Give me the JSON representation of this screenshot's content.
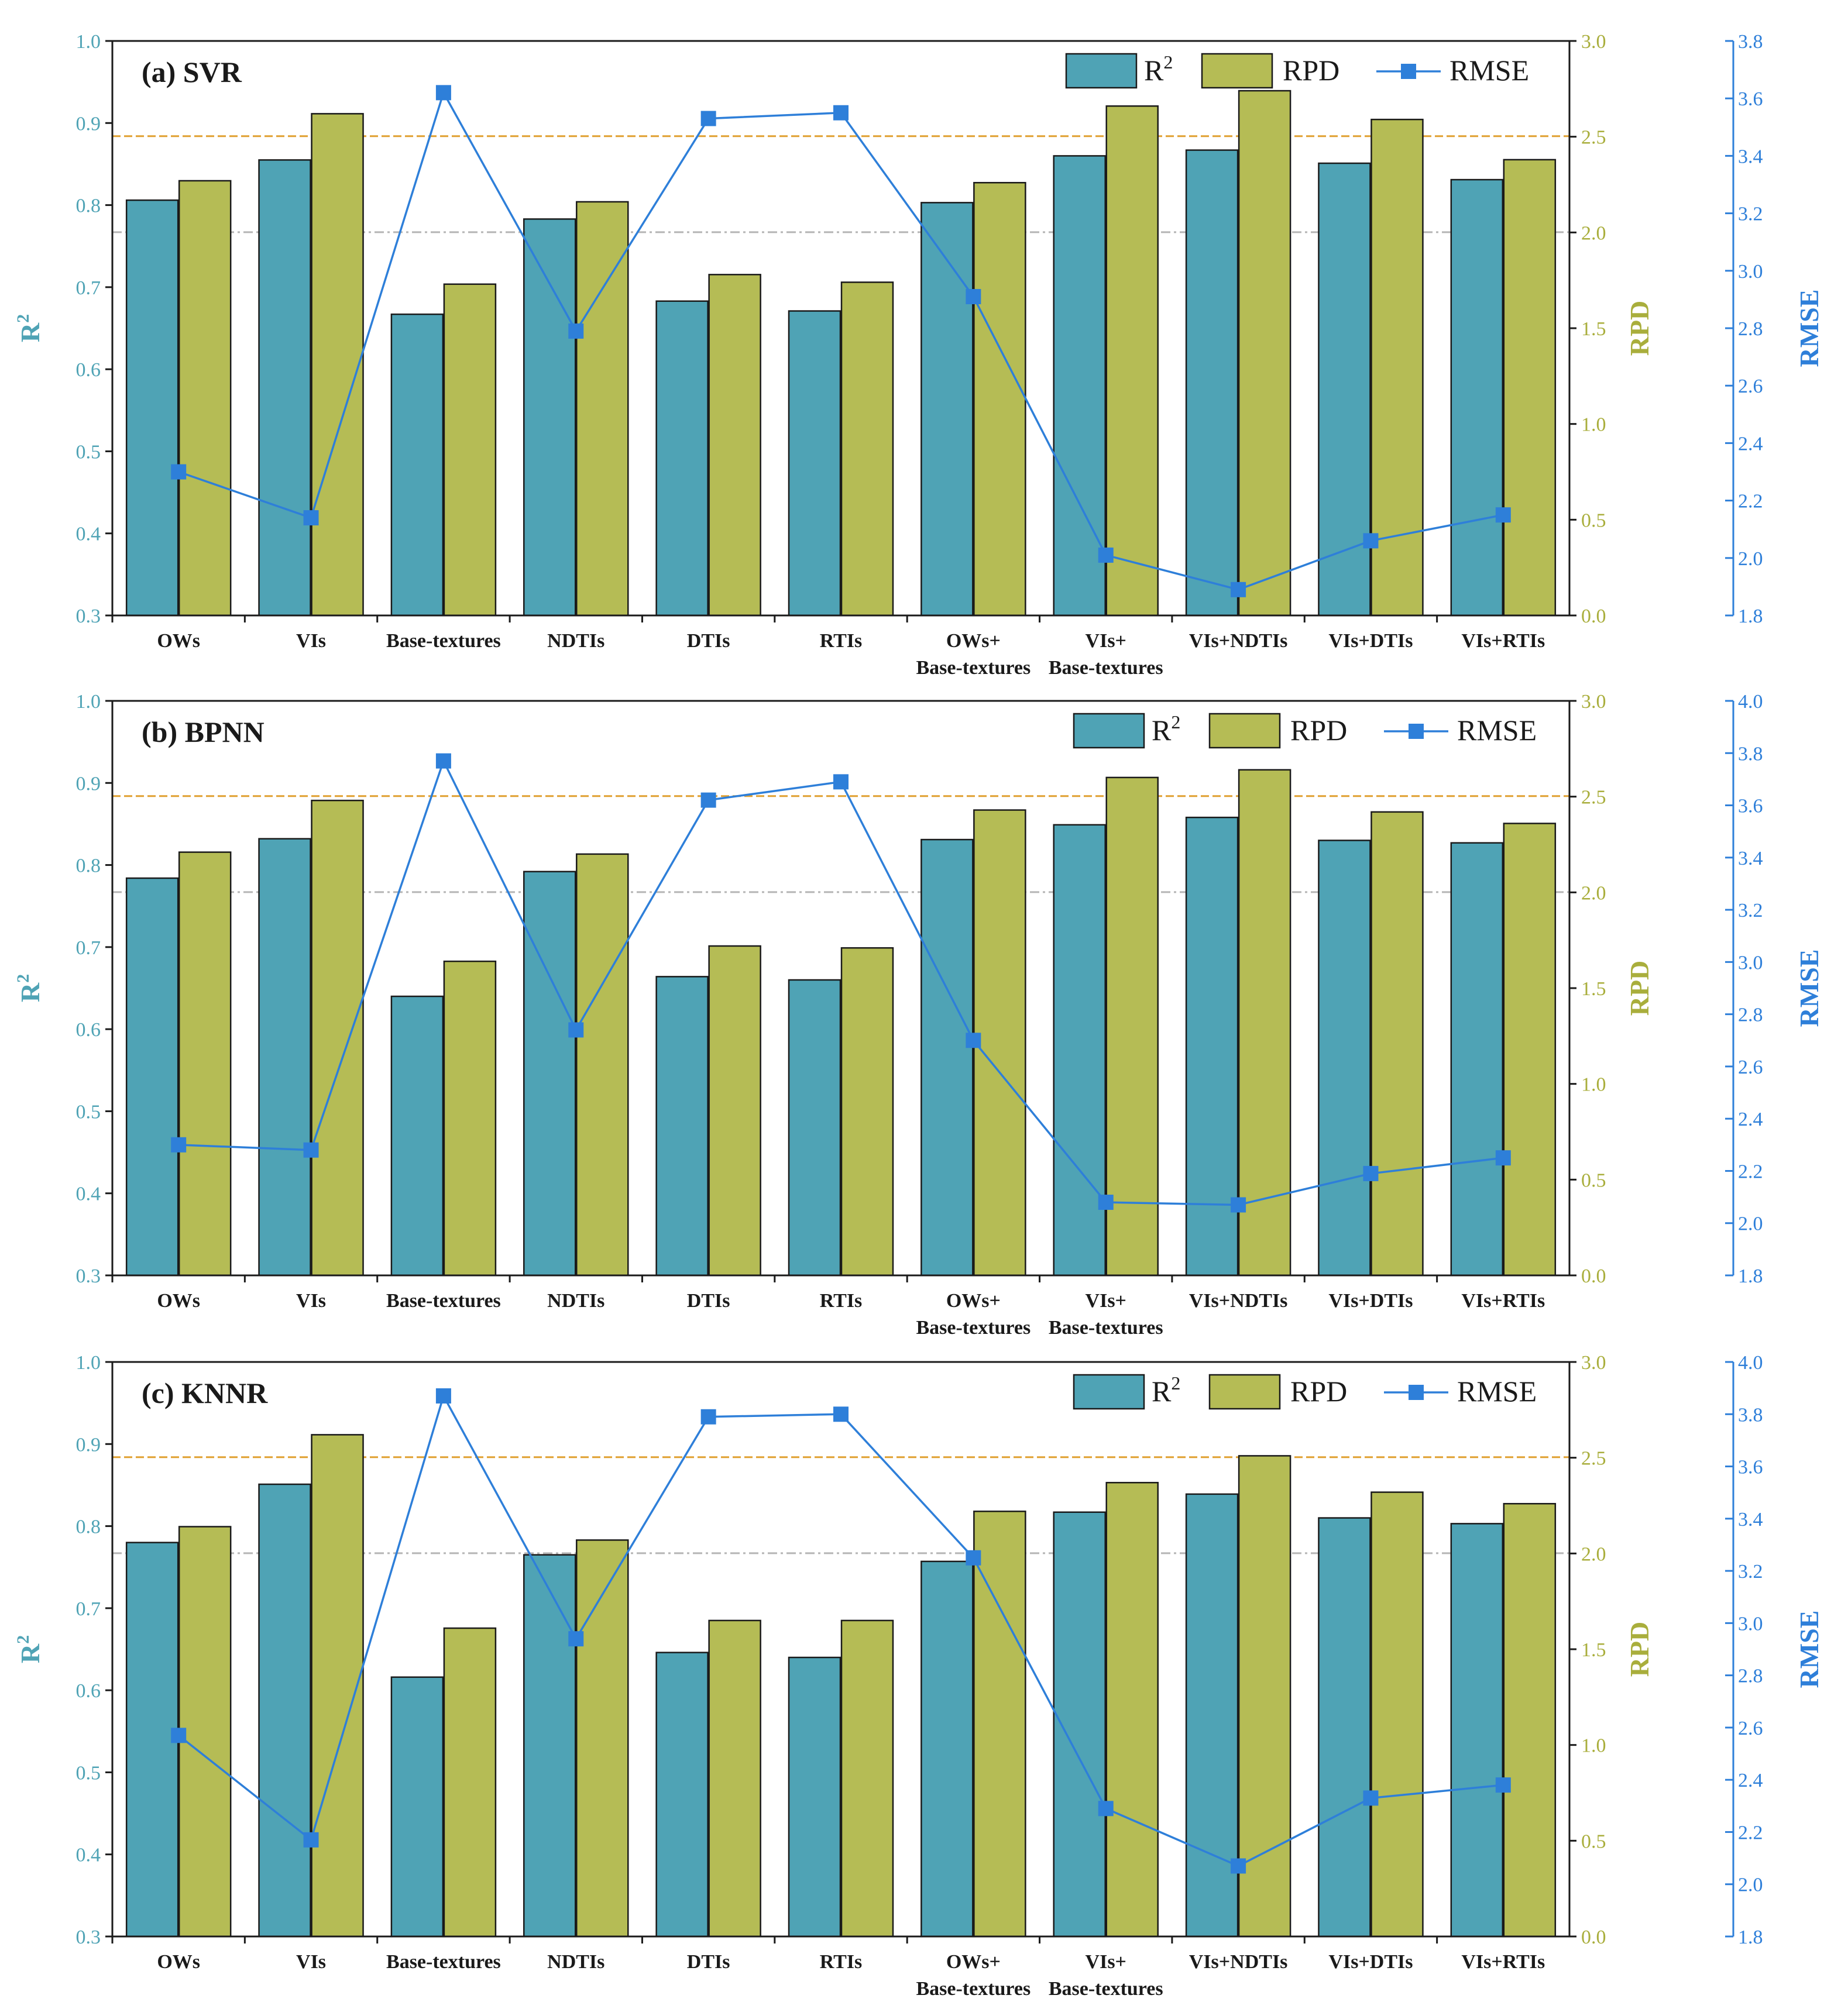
{
  "colors": {
    "r2": "#4fa3b5",
    "rpd": "#b5bc55",
    "rmse": "#2e7fd9",
    "r2_axis": "#4fa3b5",
    "rpd_axis": "#a9ae3c",
    "rmse_axis": "#2e7fd9",
    "orange_ref": "#e0a030",
    "gray_ref": "#b5b5b5"
  },
  "chart_data": [
    {
      "type": "bar",
      "title": "(a) SVR",
      "categories": [
        "OWs",
        "VIs",
        "Base-textures",
        "NDTIs",
        "DTIs",
        "RTIs",
        "OWs+\nBase-textures",
        "VIs+\nBase-textures",
        "VIs+NDTIs",
        "VIs+DTIs",
        "VIs+RTIs"
      ],
      "series": [
        {
          "name": "R2",
          "legend_main": "R",
          "legend_sup": "2",
          "axis": "left",
          "values": [
            0.806,
            0.855,
            0.667,
            0.783,
            0.683,
            0.671,
            0.803,
            0.86,
            0.867,
            0.851,
            0.831
          ]
        },
        {
          "name": "RPD",
          "legend_main": "RPD",
          "legend_sup": "",
          "axis": "right1",
          "values": [
            2.27,
            2.62,
            1.73,
            2.16,
            1.78,
            1.74,
            2.26,
            2.66,
            2.74,
            2.59,
            2.38
          ]
        },
        {
          "name": "RMSE",
          "legend_main": "RMSE",
          "legend_sup": "",
          "axis": "right2",
          "values": [
            2.3,
            2.14,
            3.62,
            2.79,
            3.53,
            3.55,
            2.91,
            2.01,
            1.89,
            2.06,
            2.15
          ]
        }
      ],
      "ylabel_main": "R",
      "ylabel_sup": "2",
      "y2label": "RPD",
      "y3label": "RMSE",
      "ylim": [
        0.3,
        1.0
      ],
      "y2lim": [
        0.0,
        3.0
      ],
      "y3lim": [
        1.8,
        3.8
      ],
      "yticks": [
        "0.3",
        "0.4",
        "0.5",
        "0.6",
        "0.7",
        "0.8",
        "0.9",
        "1.0"
      ],
      "y2ticks": [
        "0.0",
        "0.5",
        "1.0",
        "1.5",
        "2.0",
        "2.5",
        "3.0"
      ],
      "y3ticks": [
        "1.8",
        "2.0",
        "2.2",
        "2.4",
        "2.6",
        "2.8",
        "3.0",
        "3.2",
        "3.4",
        "3.6",
        "3.8"
      ],
      "reference_lines": [
        {
          "axis": "left",
          "value": 0.884,
          "color": "orange"
        },
        {
          "axis": "left",
          "value": 0.767,
          "color": "gray"
        }
      ],
      "legend_position": "top-right"
    },
    {
      "type": "bar",
      "title": "(b) BPNN",
      "categories": [
        "OWs",
        "VIs",
        "Base-textures",
        "NDTIs",
        "DTIs",
        "RTIs",
        "OWs+\nBase-textures",
        "VIs+\nBase-textures",
        "VIs+NDTIs",
        "VIs+DTIs",
        "VIs+RTIs"
      ],
      "series": [
        {
          "name": "R2",
          "legend_main": "R",
          "legend_sup": "2",
          "axis": "left",
          "values": [
            0.784,
            0.832,
            0.64,
            0.792,
            0.664,
            0.66,
            0.831,
            0.849,
            0.858,
            0.83,
            0.827
          ]
        },
        {
          "name": "RPD",
          "legend_main": "RPD",
          "legend_sup": "",
          "axis": "right1",
          "values": [
            2.21,
            2.48,
            1.64,
            2.2,
            1.72,
            1.71,
            2.43,
            2.6,
            2.64,
            2.42,
            2.36
          ]
        },
        {
          "name": "RMSE",
          "legend_main": "RMSE",
          "legend_sup": "",
          "axis": "right2",
          "values": [
            2.3,
            2.28,
            3.77,
            2.74,
            3.62,
            3.69,
            2.7,
            2.08,
            2.07,
            2.19,
            2.25
          ]
        }
      ],
      "ylabel_main": "R",
      "ylabel_sup": "2",
      "y2label": "RPD",
      "y3label": "RMSE",
      "ylim": [
        0.3,
        1.0
      ],
      "y2lim": [
        0.0,
        3.0
      ],
      "y3lim": [
        1.8,
        4.0
      ],
      "yticks": [
        "0.3",
        "0.4",
        "0.5",
        "0.6",
        "0.7",
        "0.8",
        "0.9",
        "1.0"
      ],
      "y2ticks": [
        "0.0",
        "0.5",
        "1.0",
        "1.5",
        "2.0",
        "2.5",
        "3.0"
      ],
      "y3ticks": [
        "1.8",
        "2.0",
        "2.2",
        "2.4",
        "2.6",
        "2.8",
        "3.0",
        "3.2",
        "3.4",
        "3.6",
        "3.8",
        "4.0"
      ],
      "reference_lines": [
        {
          "axis": "left",
          "value": 0.884,
          "color": "orange"
        },
        {
          "axis": "left",
          "value": 0.767,
          "color": "gray"
        }
      ],
      "legend_position": "top-right"
    },
    {
      "type": "bar",
      "title": "(c) KNNR",
      "categories": [
        "OWs",
        "VIs",
        "Base-textures",
        "NDTIs",
        "DTIs",
        "RTIs",
        "OWs+\nBase-textures",
        "VIs+\nBase-textures",
        "VIs+NDTIs",
        "VIs+DTIs",
        "VIs+RTIs"
      ],
      "series": [
        {
          "name": "R2",
          "legend_main": "R",
          "legend_sup": "2",
          "axis": "left",
          "values": [
            0.78,
            0.851,
            0.616,
            0.765,
            0.646,
            0.64,
            0.757,
            0.817,
            0.839,
            0.81,
            0.803
          ]
        },
        {
          "name": "RPD",
          "legend_main": "RPD",
          "legend_sup": "",
          "axis": "right1",
          "values": [
            2.14,
            2.62,
            1.61,
            2.07,
            1.65,
            1.65,
            2.22,
            2.37,
            2.51,
            2.32,
            2.26
          ]
        },
        {
          "name": "RMSE",
          "legend_main": "RMSE",
          "legend_sup": "",
          "axis": "right2",
          "values": [
            2.57,
            2.17,
            3.87,
            2.94,
            3.79,
            3.8,
            3.25,
            2.29,
            2.07,
            2.33,
            2.38
          ]
        }
      ],
      "ylabel_main": "R",
      "ylabel_sup": "2",
      "y2label": "RPD",
      "y3label": "RMSE",
      "ylim": [
        0.3,
        1.0
      ],
      "y2lim": [
        0.0,
        3.0
      ],
      "y3lim": [
        1.8,
        4.0
      ],
      "yticks": [
        "0.3",
        "0.4",
        "0.5",
        "0.6",
        "0.7",
        "0.8",
        "0.9",
        "1.0"
      ],
      "y2ticks": [
        "0.0",
        "0.5",
        "1.0",
        "1.5",
        "2.0",
        "2.5",
        "3.0"
      ],
      "y3ticks": [
        "1.8",
        "2.0",
        "2.2",
        "2.4",
        "2.6",
        "2.8",
        "3.0",
        "3.2",
        "3.4",
        "3.6",
        "3.8",
        "4.0"
      ],
      "reference_lines": [
        {
          "axis": "left",
          "value": 0.884,
          "color": "orange"
        },
        {
          "axis": "left",
          "value": 0.767,
          "color": "gray"
        }
      ],
      "legend_position": "top-right"
    }
  ]
}
